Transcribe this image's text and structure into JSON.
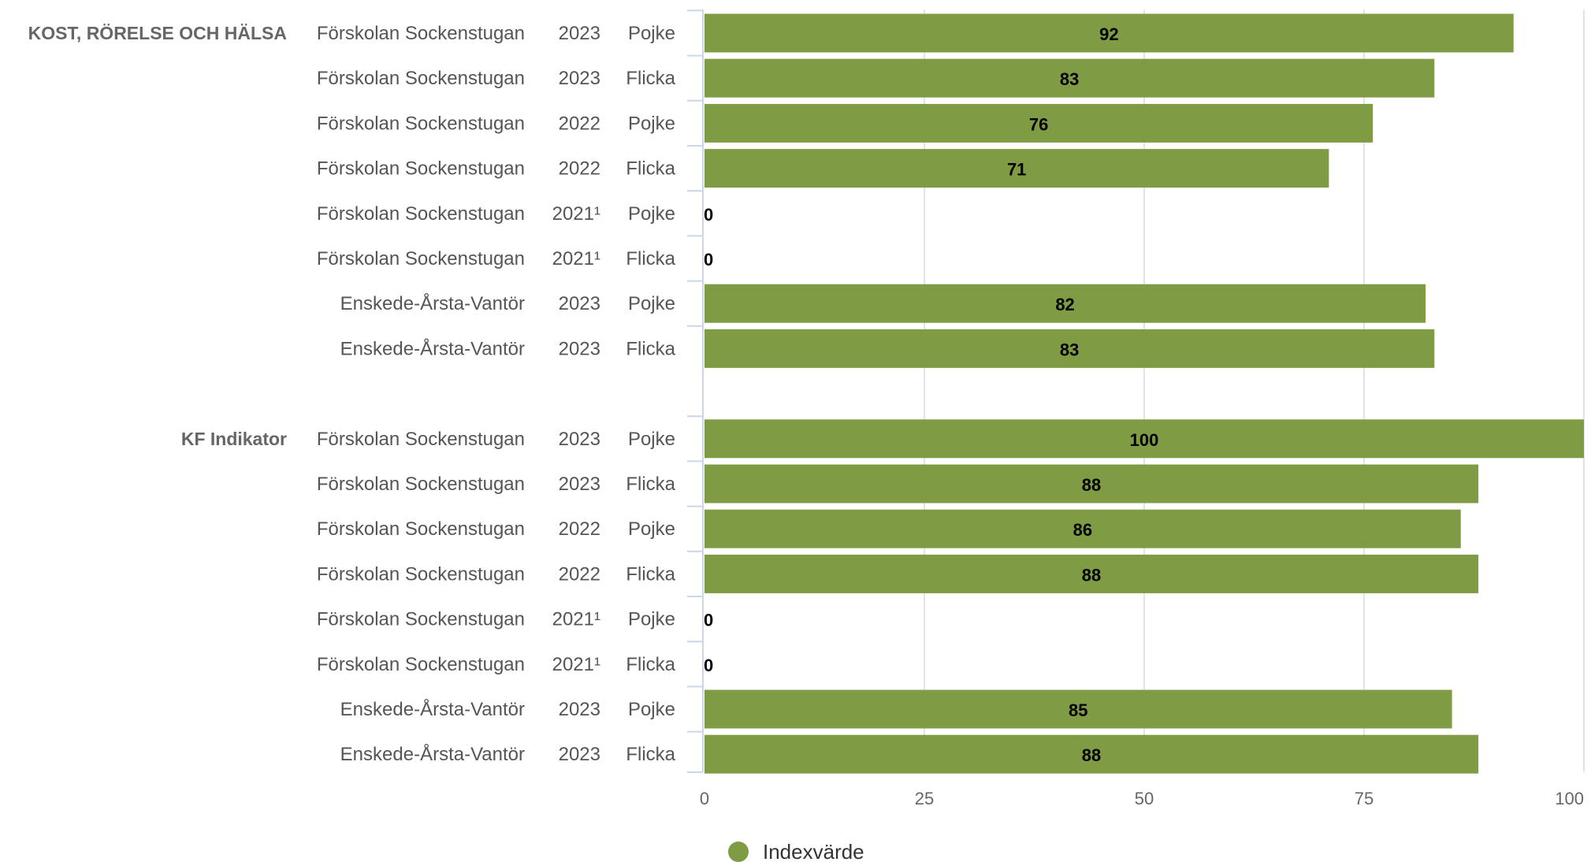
{
  "chart_data": {
    "type": "bar",
    "orientation": "horizontal",
    "xlim": [
      0,
      100
    ],
    "x_ticks": [
      "0",
      "25",
      "50",
      "75",
      "100"
    ],
    "grid": true,
    "legend_position": "bottom-center",
    "colors": {
      "bar": "#7f9c45",
      "grid": "#e3e3e3",
      "axis": "#ccd6eb"
    },
    "groups": [
      {
        "label": "KOST, RÖRELSE OCH HÄLSA",
        "rows": [
          {
            "unit": "Förskolan Sockenstugan",
            "year": "2023",
            "gender": "Pojke",
            "value": 92
          },
          {
            "unit": "Förskolan Sockenstugan",
            "year": "2023",
            "gender": "Flicka",
            "value": 83
          },
          {
            "unit": "Förskolan Sockenstugan",
            "year": "2022",
            "gender": "Pojke",
            "value": 76
          },
          {
            "unit": "Förskolan Sockenstugan",
            "year": "2022",
            "gender": "Flicka",
            "value": 71
          },
          {
            "unit": "Förskolan Sockenstugan",
            "year": "2021¹",
            "gender": "Pojke",
            "value": 0
          },
          {
            "unit": "Förskolan Sockenstugan",
            "year": "2021¹",
            "gender": "Flicka",
            "value": 0
          },
          {
            "unit": "Enskede-Årsta-Vantör",
            "year": "2023",
            "gender": "Pojke",
            "value": 82
          },
          {
            "unit": "Enskede-Årsta-Vantör",
            "year": "2023",
            "gender": "Flicka",
            "value": 83
          }
        ]
      },
      {
        "label": "KF Indikator",
        "rows": [
          {
            "unit": "Förskolan Sockenstugan",
            "year": "2023",
            "gender": "Pojke",
            "value": 100
          },
          {
            "unit": "Förskolan Sockenstugan",
            "year": "2023",
            "gender": "Flicka",
            "value": 88
          },
          {
            "unit": "Förskolan Sockenstugan",
            "year": "2022",
            "gender": "Pojke",
            "value": 86
          },
          {
            "unit": "Förskolan Sockenstugan",
            "year": "2022",
            "gender": "Flicka",
            "value": 88
          },
          {
            "unit": "Förskolan Sockenstugan",
            "year": "2021¹",
            "gender": "Pojke",
            "value": 0
          },
          {
            "unit": "Förskolan Sockenstugan",
            "year": "2021¹",
            "gender": "Flicka",
            "value": 0
          },
          {
            "unit": "Enskede-Årsta-Vantör",
            "year": "2023",
            "gender": "Pojke",
            "value": 85
          },
          {
            "unit": "Enskede-Årsta-Vantör",
            "year": "2023",
            "gender": "Flicka",
            "value": 88
          }
        ]
      }
    ],
    "series": [
      {
        "name": "Indexvärde"
      }
    ]
  }
}
